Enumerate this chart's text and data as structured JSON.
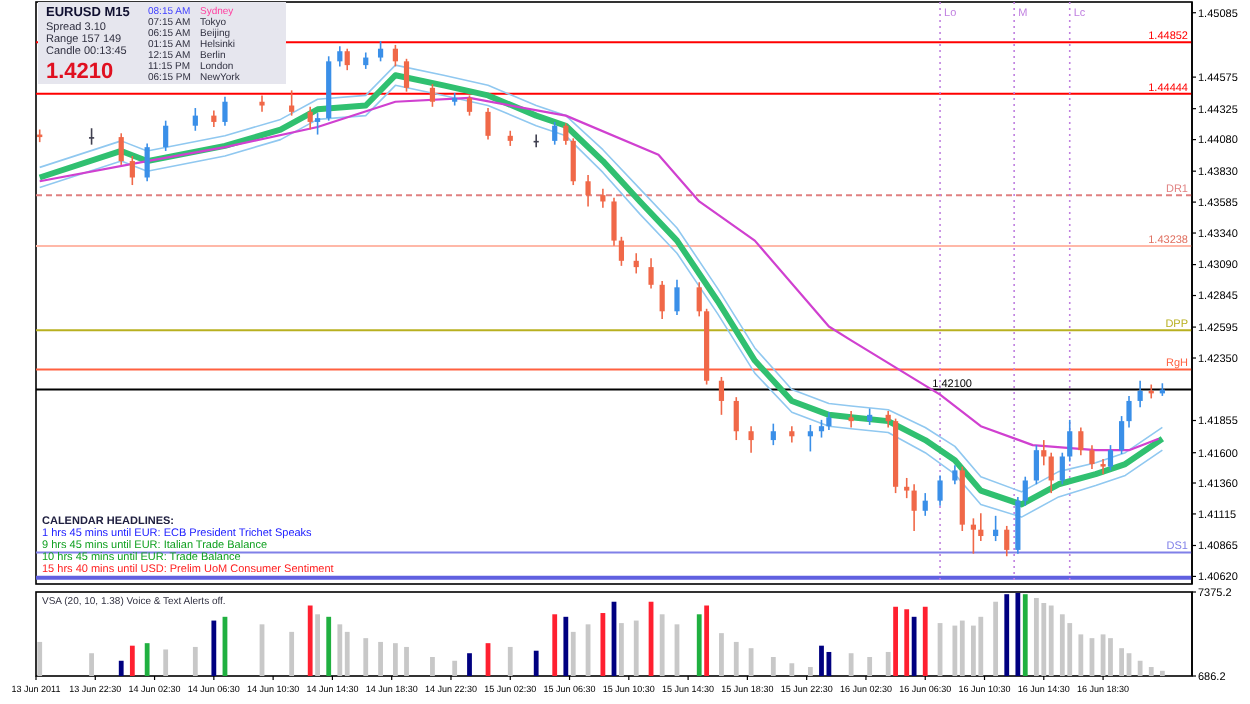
{
  "chart_data": [
    {
      "type": "candlestick",
      "title": "EURUSD  M15",
      "x": [
        "2011-06-13T18:45",
        "2011-06-13T22:15",
        "2011-06-14T00:15",
        "2011-06-14T01:00",
        "2011-06-14T02:00",
        "2011-06-14T03:15",
        "2011-06-14T05:15",
        "2011-06-14T06:30",
        "2011-06-14T07:15",
        "2011-06-14T09:45",
        "2011-06-14T11:45",
        "2011-06-14T13:00",
        "2011-06-14T13:30",
        "2011-06-14T14:15",
        "2011-06-14T15:00",
        "2011-06-14T15:30",
        "2011-06-14T16:45",
        "2011-06-14T17:45",
        "2011-06-14T18:45",
        "2011-06-14T19:30",
        "2011-06-14T21:15",
        "2011-06-14T22:45",
        "2011-06-14T23:45",
        "2011-06-15T01:00",
        "2011-06-15T02:30",
        "2011-06-15T04:15",
        "2011-06-15T05:30",
        "2011-06-15T06:15",
        "2011-06-15T06:45",
        "2011-06-15T07:45",
        "2011-06-15T08:45",
        "2011-06-15T09:30",
        "2011-06-15T10:00",
        "2011-06-15T11:00",
        "2011-06-15T12:00",
        "2011-06-15T12:45",
        "2011-06-15T13:45",
        "2011-06-15T15:15",
        "2011-06-15T15:45",
        "2011-06-15T16:45",
        "2011-06-15T17:45",
        "2011-06-15T18:45",
        "2011-06-15T20:15",
        "2011-06-15T21:30",
        "2011-06-15T22:45",
        "2011-06-15T23:30",
        "2011-06-16T00:00",
        "2011-06-16T01:30",
        "2011-06-16T02:45",
        "2011-06-16T04:00",
        "2011-06-16T04:30",
        "2011-06-16T05:15",
        "2011-06-16T05:45",
        "2011-06-16T06:30",
        "2011-06-16T07:30",
        "2011-06-16T08:30",
        "2011-06-16T09:00",
        "2011-06-16T09:45",
        "2011-06-16T10:15",
        "2011-06-16T11:15",
        "2011-06-16T12:00",
        "2011-06-16T12:45",
        "2011-06-16T13:15",
        "2011-06-16T14:00",
        "2011-06-16T14:30",
        "2011-06-16T15:00",
        "2011-06-16T15:45",
        "2011-06-16T16:15",
        "2011-06-16T17:00",
        "2011-06-16T17:45",
        "2011-06-16T18:30",
        "2011-06-16T19:00",
        "2011-06-16T19:45",
        "2011-06-16T20:15",
        "2011-06-16T21:00",
        "2011-06-16T21:45",
        "2011-06-16T22:30"
      ],
      "ohlc": [
        [
          1.4412,
          1.4416,
          1.4406,
          1.441
        ],
        [
          1.441,
          1.4417,
          1.4404,
          1.441
        ],
        [
          1.441,
          1.4413,
          1.4388,
          1.4391
        ],
        [
          1.4391,
          1.4395,
          1.4372,
          1.4378
        ],
        [
          1.4378,
          1.4405,
          1.4375,
          1.4402
        ],
        [
          1.4402,
          1.4423,
          1.4399,
          1.4419
        ],
        [
          1.4419,
          1.4433,
          1.4415,
          1.4427
        ],
        [
          1.4427,
          1.4431,
          1.4418,
          1.4422
        ],
        [
          1.4422,
          1.4442,
          1.4419,
          1.4438
        ],
        [
          1.4438,
          1.4443,
          1.443,
          1.4435
        ],
        [
          1.4435,
          1.4447,
          1.4427,
          1.443
        ],
        [
          1.443,
          1.4434,
          1.4416,
          1.4422
        ],
        [
          1.4422,
          1.4429,
          1.4412,
          1.4425
        ],
        [
          1.4425,
          1.4474,
          1.4423,
          1.447
        ],
        [
          1.447,
          1.4482,
          1.4466,
          1.4478
        ],
        [
          1.4478,
          1.448,
          1.4463,
          1.4467
        ],
        [
          1.4467,
          1.4477,
          1.4464,
          1.4473
        ],
        [
          1.4473,
          1.4486,
          1.447,
          1.448
        ],
        [
          1.448,
          1.4483,
          1.4466,
          1.447
        ],
        [
          1.447,
          1.4472,
          1.4446,
          1.4449
        ],
        [
          1.4449,
          1.4452,
          1.4434,
          1.4438
        ],
        [
          1.4438,
          1.4445,
          1.4435,
          1.4441
        ],
        [
          1.4441,
          1.4443,
          1.4427,
          1.443
        ],
        [
          1.443,
          1.4433,
          1.4408,
          1.4411
        ],
        [
          1.4411,
          1.4415,
          1.4403,
          1.4407
        ],
        [
          1.4407,
          1.4412,
          1.4402,
          1.4407
        ],
        [
          1.4407,
          1.4422,
          1.4404,
          1.4419
        ],
        [
          1.4419,
          1.4421,
          1.4404,
          1.4407
        ],
        [
          1.4407,
          1.4409,
          1.4372,
          1.4375
        ],
        [
          1.4375,
          1.438,
          1.4355,
          1.4364
        ],
        [
          1.4364,
          1.4369,
          1.4354,
          1.4359
        ],
        [
          1.4359,
          1.4362,
          1.4324,
          1.4328
        ],
        [
          1.4328,
          1.4331,
          1.4308,
          1.4312
        ],
        [
          1.4312,
          1.4318,
          1.4302,
          1.4307
        ],
        [
          1.4307,
          1.4314,
          1.429,
          1.4293
        ],
        [
          1.4293,
          1.4296,
          1.4266,
          1.4272
        ],
        [
          1.4272,
          1.4297,
          1.4269,
          1.4291
        ],
        [
          1.4291,
          1.4295,
          1.4268,
          1.4272
        ],
        [
          1.4272,
          1.4274,
          1.4214,
          1.4217
        ],
        [
          1.4217,
          1.422,
          1.419,
          1.4201
        ],
        [
          1.4201,
          1.4204,
          1.417,
          1.4177
        ],
        [
          1.4177,
          1.4181,
          1.416,
          1.417
        ],
        [
          1.417,
          1.4183,
          1.4166,
          1.4177
        ],
        [
          1.4177,
          1.4181,
          1.4168,
          1.4173
        ],
        [
          1.4173,
          1.4182,
          1.4161,
          1.4177
        ],
        [
          1.4177,
          1.4186,
          1.4172,
          1.4181
        ],
        [
          1.4181,
          1.4192,
          1.4178,
          1.4188
        ],
        [
          1.4188,
          1.4193,
          1.418,
          1.4185
        ],
        [
          1.4185,
          1.4195,
          1.4182,
          1.419
        ],
        [
          1.419,
          1.4193,
          1.418,
          1.4185
        ],
        [
          1.4185,
          1.4187,
          1.4128,
          1.4133
        ],
        [
          1.4133,
          1.414,
          1.4124,
          1.413
        ],
        [
          1.413,
          1.4135,
          1.4098,
          1.4114
        ],
        [
          1.4114,
          1.4128,
          1.411,
          1.4122
        ],
        [
          1.4122,
          1.4142,
          1.4118,
          1.4138
        ],
        [
          1.4138,
          1.415,
          1.4135,
          1.4146
        ],
        [
          1.4146,
          1.4149,
          1.4098,
          1.4103
        ],
        [
          1.4103,
          1.4108,
          1.408,
          1.4099
        ],
        [
          1.4099,
          1.4112,
          1.409,
          1.4094
        ],
        [
          1.4094,
          1.411,
          1.409,
          1.4099
        ],
        [
          1.4099,
          1.4102,
          1.4078,
          1.4083
        ],
        [
          1.4083,
          1.4125,
          1.408,
          1.4122
        ],
        [
          1.4122,
          1.4141,
          1.4118,
          1.4138
        ],
        [
          1.4138,
          1.4166,
          1.4135,
          1.4162
        ],
        [
          1.4162,
          1.417,
          1.415,
          1.4157
        ],
        [
          1.4157,
          1.416,
          1.4128,
          1.4138
        ],
        [
          1.4138,
          1.416,
          1.4135,
          1.4157
        ],
        [
          1.4157,
          1.4186,
          1.4153,
          1.4177
        ],
        [
          1.4177,
          1.418,
          1.4158,
          1.4162
        ],
        [
          1.4162,
          1.4166,
          1.4147,
          1.4151
        ],
        [
          1.4151,
          1.4155,
          1.4143,
          1.4149
        ],
        [
          1.4149,
          1.4166,
          1.4146,
          1.4162
        ],
        [
          1.4162,
          1.4189,
          1.4159,
          1.4185
        ],
        [
          1.4185,
          1.4205,
          1.418,
          1.4201
        ],
        [
          1.4201,
          1.4217,
          1.4196,
          1.4209
        ],
        [
          1.4209,
          1.4214,
          1.4203,
          1.4207
        ],
        [
          1.4207,
          1.4215,
          1.4205,
          1.421
        ]
      ],
      "colors": [
        "#f06848",
        "#404050",
        "#f06848",
        "#f06848",
        "#3a8fe8",
        "#3a8fe8",
        "#3a8fe8",
        "#f06848",
        "#3a8fe8",
        "#f06848",
        "#f06848",
        "#f06848",
        "#3a8fe8",
        "#3a8fe8",
        "#3a8fe8",
        "#f06848",
        "#3a8fe8",
        "#3a8fe8",
        "#f06848",
        "#f06848",
        "#f06848",
        "#3a8fe8",
        "#f06848",
        "#f06848",
        "#f06848",
        "#404050",
        "#3a8fe8",
        "#f06848",
        "#f06848",
        "#f06848",
        "#f06848",
        "#f06848",
        "#f06848",
        "#f06848",
        "#f06848",
        "#f06848",
        "#3a8fe8",
        "#f06848",
        "#f06848",
        "#f06848",
        "#f06848",
        "#f06848",
        "#3a8fe8",
        "#f06848",
        "#3a8fe8",
        "#3a8fe8",
        "#3a8fe8",
        "#f06848",
        "#3a8fe8",
        "#f06848",
        "#f06848",
        "#f06848",
        "#f06848",
        "#3a8fe8",
        "#3a8fe8",
        "#3a8fe8",
        "#f06848",
        "#f06848",
        "#f06848",
        "#3a8fe8",
        "#f06848",
        "#3a8fe8",
        "#3a8fe8",
        "#3a8fe8",
        "#f06848",
        "#f06848",
        "#3a8fe8",
        "#3a8fe8",
        "#f06848",
        "#f06848",
        "#f06848",
        "#3a8fe8",
        "#3a8fe8",
        "#3a8fe8",
        "#3a8fe8",
        "#f06848",
        "#3a8fe8"
      ],
      "series": [
        {
          "type": "line",
          "color": "#90c8f0",
          "x": [
            "2011-06-13T18:45",
            "2011-06-14T00:15",
            "2011-06-14T02:00",
            "2011-06-14T07:15",
            "2011-06-14T11:00",
            "2011-06-14T13:30",
            "2011-06-14T16:45",
            "2011-06-14T18:45",
            "2011-06-14T22:00",
            "2011-06-15T01:00",
            "2011-06-15T04:15",
            "2011-06-15T06:15",
            "2011-06-15T08:45",
            "2011-06-15T11:15",
            "2011-06-15T13:45",
            "2011-06-15T16:30",
            "2011-06-15T19:00",
            "2011-06-15T21:30",
            "2011-06-16T00:00",
            "2011-06-16T01:30",
            "2011-06-16T04:00",
            "2011-06-16T06:30",
            "2011-06-16T08:30",
            "2011-06-16T10:15",
            "2011-06-16T13:00",
            "2011-06-16T15:30",
            "2011-06-16T18:00",
            "2011-06-16T20:00",
            "2011-06-16T22:30"
          ],
          "values": [
            1.4386,
            1.4407,
            1.4399,
            1.4411,
            1.4424,
            1.444,
            1.4443,
            1.4467,
            1.4459,
            1.4451,
            1.4435,
            1.4427,
            1.44,
            1.4369,
            1.4338,
            1.429,
            1.4243,
            1.421,
            1.4199,
            1.4197,
            1.4194,
            1.418,
            1.4165,
            1.4141,
            1.4129,
            1.4145,
            1.4152,
            1.416,
            1.418
          ]
        },
        {
          "type": "line",
          "color": "#30c070",
          "x": [
            "2011-06-13T18:45",
            "2011-06-14T00:15",
            "2011-06-14T02:00",
            "2011-06-14T07:15",
            "2011-06-14T11:00",
            "2011-06-14T13:30",
            "2011-06-14T16:45",
            "2011-06-14T18:45",
            "2011-06-14T22:00",
            "2011-06-15T01:00",
            "2011-06-15T04:15",
            "2011-06-15T06:15",
            "2011-06-15T08:45",
            "2011-06-15T11:15",
            "2011-06-15T13:45",
            "2011-06-15T16:30",
            "2011-06-15T19:00",
            "2011-06-15T21:30",
            "2011-06-16T00:00",
            "2011-06-16T01:30",
            "2011-06-16T04:00",
            "2011-06-16T06:30",
            "2011-06-16T08:30",
            "2011-06-16T10:15",
            "2011-06-16T13:00",
            "2011-06-16T15:30",
            "2011-06-16T18:00",
            "2011-06-16T20:00",
            "2011-06-16T22:30"
          ],
          "values": [
            1.4378,
            1.4399,
            1.4391,
            1.4403,
            1.4416,
            1.4432,
            1.4435,
            1.4459,
            1.4451,
            1.4443,
            1.4427,
            1.4419,
            1.4391,
            1.4359,
            1.4328,
            1.428,
            1.4233,
            1.4201,
            1.419,
            1.4188,
            1.4185,
            1.417,
            1.4154,
            1.413,
            1.4119,
            1.4135,
            1.4143,
            1.4151,
            1.4171
          ]
        },
        {
          "type": "line",
          "color": "#90c8f0",
          "x": [
            "2011-06-13T18:45",
            "2011-06-14T00:15",
            "2011-06-14T02:00",
            "2011-06-14T07:15",
            "2011-06-14T11:00",
            "2011-06-14T13:30",
            "2011-06-14T16:45",
            "2011-06-14T18:45",
            "2011-06-14T22:00",
            "2011-06-15T01:00",
            "2011-06-15T04:15",
            "2011-06-15T06:15",
            "2011-06-15T08:45",
            "2011-06-15T11:15",
            "2011-06-15T13:45",
            "2011-06-15T16:30",
            "2011-06-15T19:00",
            "2011-06-15T21:30",
            "2011-06-16T00:00",
            "2011-06-16T01:30",
            "2011-06-16T04:00",
            "2011-06-16T06:30",
            "2011-06-16T08:30",
            "2011-06-16T10:15",
            "2011-06-16T13:00",
            "2011-06-16T15:30",
            "2011-06-16T18:00",
            "2011-06-16T20:00",
            "2011-06-16T22:30"
          ],
          "values": [
            1.437,
            1.4391,
            1.4383,
            1.4395,
            1.4408,
            1.4424,
            1.4427,
            1.4451,
            1.4443,
            1.4435,
            1.4419,
            1.4411,
            1.4382,
            1.4349,
            1.4318,
            1.427,
            1.4223,
            1.4192,
            1.4181,
            1.4179,
            1.4176,
            1.416,
            1.4143,
            1.4119,
            1.4109,
            1.4125,
            1.4134,
            1.4142,
            1.4162
          ]
        },
        {
          "type": "line",
          "color": "#d040d0",
          "x": [
            "2011-06-13T18:45",
            "2011-06-14T02:00",
            "2011-06-14T07:15",
            "2011-06-14T13:30",
            "2011-06-14T18:45",
            "2011-06-14T23:45",
            "2011-06-15T06:15",
            "2011-06-15T12:30",
            "2011-06-15T15:15",
            "2011-06-15T19:00",
            "2011-06-16T00:00",
            "2011-06-16T01:30",
            "2011-06-16T07:30",
            "2011-06-16T10:15",
            "2011-06-16T13:45",
            "2011-06-16T18:00",
            "2011-06-16T20:15",
            "2011-06-16T22:15"
          ],
          "values": [
            1.4375,
            1.4391,
            1.4402,
            1.4418,
            1.4438,
            1.4441,
            1.4427,
            1.4396,
            1.4359,
            1.4328,
            1.426,
            1.4249,
            1.4206,
            1.4181,
            1.4166,
            1.4162,
            1.4162,
            1.4171
          ]
        }
      ],
      "xlim": [
        "2011-06-13T18:30",
        "2011-06-17T00:30"
      ],
      "ylim": [
        1.4056,
        1.4517
      ],
      "yticks": [
        1.45085,
        1.44575,
        1.44325,
        {
          "value": 1.4408,
          "label": "1.44080"
        },
        {
          "value": 1.4383,
          "label": "1.43830"
        },
        1.43585,
        {
          "value": 1.4334,
          "label": "1.43340"
        },
        {
          "value": 1.4309,
          "label": "1.43090"
        },
        1.42845,
        1.42595,
        {
          "value": 1.4235,
          "label": "1.42350"
        },
        1.41855,
        {
          "value": 1.416,
          "label": "1.41600"
        },
        {
          "value": 1.4136,
          "label": "1.41360"
        },
        1.41115,
        1.40865,
        {
          "value": 1.4062,
          "label": "1.40620"
        }
      ],
      "tick_labels": "y",
      "ref_lines": [
        {
          "axis": "y",
          "value": 1.44852,
          "label": "1.44852",
          "color": "#ff0000"
        },
        {
          "axis": "y",
          "value": 1.44444,
          "label": "1.44444",
          "color": "#ff0000"
        },
        {
          "axis": "y",
          "value": 1.43238,
          "label": "1.43238",
          "color": "#ffb8a8"
        },
        {
          "axis": "y",
          "value": 1.421,
          "label": "1.42100",
          "color": "#000000"
        },
        {
          "axis": "y",
          "value": 1.4364,
          "label": "DR1",
          "color": "#e08080",
          "line_style": "dashed"
        },
        {
          "axis": "y",
          "value": 1.4257,
          "label": "DPP",
          "color": "#b8b020"
        },
        {
          "axis": "y",
          "value": 1.4226,
          "label": "RgH",
          "color": "#ff6040"
        },
        {
          "axis": "y",
          "value": 1.4081,
          "label": "DS1",
          "color": "#8080e8"
        },
        {
          "axis": "y",
          "value": 1.4061,
          "color": "#6060e0"
        },
        {
          "axis": "x",
          "value": "2011-06-16T07:30",
          "label": "Lo",
          "color": "#c080e0",
          "line_style": "dotted"
        },
        {
          "axis": "x",
          "value": "2011-06-16T12:30",
          "label": "M",
          "color": "#c080e0",
          "line_style": "dotted"
        },
        {
          "axis": "x",
          "value": "2011-06-16T16:15",
          "label": "Lc",
          "color": "#c080e0",
          "line_style": "dotted"
        }
      ],
      "annotations": [
        "Spread  3.10",
        "Range  157 149",
        "Candle  00:13:45",
        "1.4210",
        "08:15 AM",
        "Sydney",
        "07:15 AM",
        "Tokyo",
        "06:15 AM",
        "Beijing",
        "01:15 AM",
        "Helsinki",
        "12:15 AM",
        "Berlin",
        "11:15 PM",
        "London",
        "06:15 PM",
        "NewYork",
        "CALENDAR HEADLINES:",
        "1 hrs 45 mins until EUR: ECB President Trichet Speaks",
        "9 hrs 45 mins until EUR: Italian Trade Balance",
        "10 hrs 45 mins until EUR: Trade Balance",
        "15 hrs 40 mins until USD: Prelim UoM Consumer Sentiment"
      ]
    },
    {
      "type": "bar",
      "title": "VSA (20, 10, 1.38)   Voice & Text Alerts off.",
      "x": [
        "2011-06-13T18:45",
        "2011-06-13T22:15",
        "2011-06-14T00:15",
        "2011-06-14T01:00",
        "2011-06-14T02:00",
        "2011-06-14T03:15",
        "2011-06-14T05:15",
        "2011-06-14T06:30",
        "2011-06-14T07:15",
        "2011-06-14T09:45",
        "2011-06-14T11:45",
        "2011-06-14T13:00",
        "2011-06-14T13:30",
        "2011-06-14T14:15",
        "2011-06-14T15:00",
        "2011-06-14T15:30",
        "2011-06-14T16:45",
        "2011-06-14T17:45",
        "2011-06-14T18:45",
        "2011-06-14T19:30",
        "2011-06-14T21:15",
        "2011-06-14T22:45",
        "2011-06-14T23:45",
        "2011-06-15T01:00",
        "2011-06-15T02:30",
        "2011-06-15T04:15",
        "2011-06-15T05:30",
        "2011-06-15T06:15",
        "2011-06-15T06:45",
        "2011-06-15T07:45",
        "2011-06-15T08:45",
        "2011-06-15T09:30",
        "2011-06-15T10:00",
        "2011-06-15T11:00",
        "2011-06-15T12:00",
        "2011-06-15T12:45",
        "2011-06-15T13:45",
        "2011-06-15T15:15",
        "2011-06-15T15:45",
        "2011-06-15T16:45",
        "2011-06-15T17:45",
        "2011-06-15T18:45",
        "2011-06-15T20:15",
        "2011-06-15T21:30",
        "2011-06-15T22:45",
        "2011-06-15T23:30",
        "2011-06-16T00:00",
        "2011-06-16T01:30",
        "2011-06-16T02:45",
        "2011-06-16T04:00",
        "2011-06-16T04:30",
        "2011-06-16T05:15",
        "2011-06-16T05:45",
        "2011-06-16T06:30",
        "2011-06-16T07:30",
        "2011-06-16T08:30",
        "2011-06-16T09:00",
        "2011-06-16T09:45",
        "2011-06-16T10:15",
        "2011-06-16T11:15",
        "2011-06-16T12:00",
        "2011-06-16T12:45",
        "2011-06-16T13:15",
        "2011-06-16T14:00",
        "2011-06-16T14:30",
        "2011-06-16T15:00",
        "2011-06-16T15:45",
        "2011-06-16T16:15",
        "2011-06-16T17:00",
        "2011-06-16T17:45",
        "2011-06-16T18:30",
        "2011-06-16T19:00",
        "2011-06-16T19:45",
        "2011-06-16T20:15",
        "2011-06-16T21:00",
        "2011-06-16T21:45",
        "2011-06-16T22:30"
      ],
      "values": [
        3400,
        2500,
        1900,
        3100,
        3300,
        2800,
        3000,
        5100,
        5400,
        4800,
        4200,
        6300,
        5600,
        5400,
        4800,
        4200,
        3700,
        3400,
        3300,
        3000,
        2200,
        1900,
        2500,
        3300,
        3000,
        2700,
        5600,
        5400,
        4200,
        4800,
        5700,
        6600,
        4900,
        5100,
        6600,
        5600,
        4800,
        5600,
        6300,
        4100,
        3400,
        2900,
        2200,
        1700,
        1400,
        3100,
        2600,
        2500,
        2200,
        2600,
        6200,
        6000,
        5400,
        6200,
        4900,
        4700,
        5100,
        4700,
        5400,
        6600,
        7200,
        7300,
        7200,
        6900,
        6500,
        6300,
        5600,
        4900,
        4000,
        3700,
        4000,
        3700,
        2900,
        2500,
        1900,
        1400,
        1100
      ],
      "colors": [
        "#c8c8c8",
        "#c8c8c8",
        "#000080",
        "#ff2030",
        "#20b040",
        "#c8c8c8",
        "#c8c8c8",
        "#000080",
        "#20b040",
        "#c8c8c8",
        "#c8c8c8",
        "#ff2030",
        "#c8c8c8",
        "#20b040",
        "#c8c8c8",
        "#c8c8c8",
        "#c8c8c8",
        "#c8c8c8",
        "#c8c8c8",
        "#c8c8c8",
        "#c8c8c8",
        "#c8c8c8",
        "#000080",
        "#ff2030",
        "#c8c8c8",
        "#000080",
        "#ff2030",
        "#000080",
        "#c8c8c8",
        "#c8c8c8",
        "#ff2030",
        "#000080",
        "#c8c8c8",
        "#c8c8c8",
        "#ff2030",
        "#c8c8c8",
        "#c8c8c8",
        "#20b040",
        "#ff2030",
        "#c8c8c8",
        "#c8c8c8",
        "#c8c8c8",
        "#c8c8c8",
        "#c8c8c8",
        "#c8c8c8",
        "#000080",
        "#000080",
        "#c8c8c8",
        "#c8c8c8",
        "#c8c8c8",
        "#ff2030",
        "#ff2030",
        "#000080",
        "#ff2030",
        "#c8c8c8",
        "#c8c8c8",
        "#c8c8c8",
        "#c8c8c8",
        "#c8c8c8",
        "#c8c8c8",
        "#000080",
        "#000080",
        "#20b040",
        "#c8c8c8",
        "#c8c8c8",
        "#c8c8c8",
        "#c8c8c8",
        "#c8c8c8",
        "#c8c8c8",
        "#c8c8c8",
        "#c8c8c8",
        "#c8c8c8",
        "#c8c8c8",
        "#c8c8c8",
        "#c8c8c8",
        "#c8c8c8",
        "#c8c8c8"
      ],
      "xlim": [
        "2011-06-13T18:30",
        "2011-06-17T00:30"
      ],
      "xticks": [
        {
          "value": "2011-06-13T18:30",
          "label": "13 Jun 2011"
        },
        {
          "value": "2011-06-13T22:30",
          "label": "13 Jun 22:30"
        },
        {
          "value": "2011-06-14T02:30",
          "label": "14 Jun 02:30"
        },
        {
          "value": "2011-06-14T06:30",
          "label": "14 Jun 06:30"
        },
        {
          "value": "2011-06-14T10:30",
          "label": "14 Jun 10:30"
        },
        {
          "value": "2011-06-14T14:30",
          "label": "14 Jun 14:30"
        },
        {
          "value": "2011-06-14T18:30",
          "label": "14 Jun 18:30"
        },
        {
          "value": "2011-06-14T22:30",
          "label": "14 Jun 22:30"
        },
        {
          "value": "2011-06-15T02:30",
          "label": "15 Jun 02:30"
        },
        {
          "value": "2011-06-15T06:30",
          "label": "15 Jun 06:30"
        },
        {
          "value": "2011-06-15T10:30",
          "label": "15 Jun 10:30"
        },
        {
          "value": "2011-06-15T14:30",
          "label": "15 Jun 14:30"
        },
        {
          "value": "2011-06-15T18:30",
          "label": "15 Jun 18:30"
        },
        {
          "value": "2011-06-15T22:30",
          "label": "15 Jun 22:30"
        },
        {
          "value": "2011-06-16T02:30",
          "label": "16 Jun 02:30"
        },
        {
          "value": "2011-06-16T06:30",
          "label": "16 Jun 06:30"
        },
        {
          "value": "2011-06-16T10:30",
          "label": "16 Jun 10:30"
        },
        {
          "value": "2011-06-16T14:30",
          "label": "16 Jun 14:30"
        },
        {
          "value": "2011-06-16T18:30",
          "label": "16 Jun 18:30"
        }
      ],
      "ylim": [
        686.2,
        7375.2
      ],
      "yticks": [
        7375.2,
        686.2
      ]
    }
  ]
}
